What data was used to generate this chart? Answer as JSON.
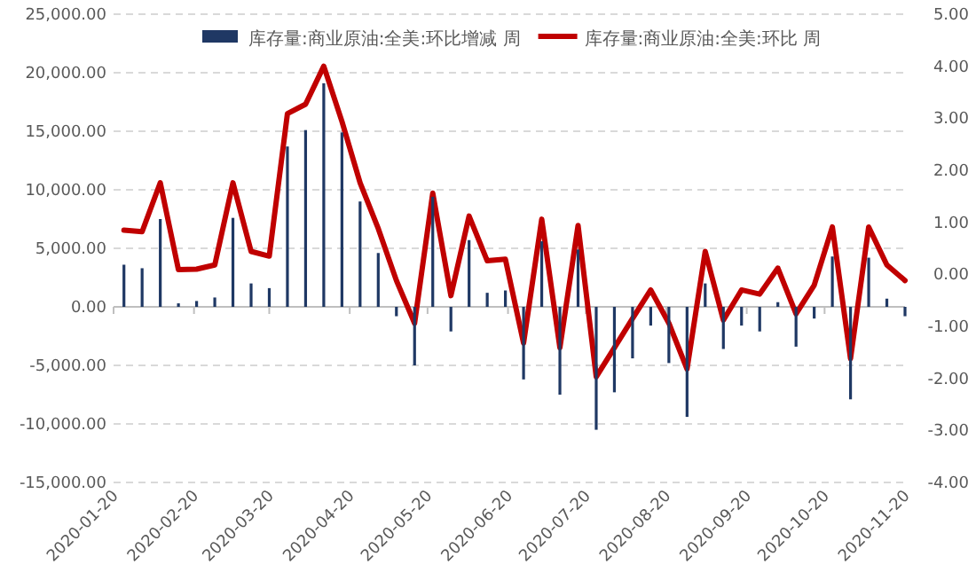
{
  "chart_data": {
    "type": "bar",
    "x": [
      "2020-01-24",
      "2020-01-31",
      "2020-02-07",
      "2020-02-14",
      "2020-02-21",
      "2020-02-28",
      "2020-03-06",
      "2020-03-13",
      "2020-03-20",
      "2020-03-27",
      "2020-04-03",
      "2020-04-10",
      "2020-04-17",
      "2020-04-24",
      "2020-05-01",
      "2020-05-08",
      "2020-05-15",
      "2020-05-22",
      "2020-05-29",
      "2020-06-05",
      "2020-06-12",
      "2020-06-19",
      "2020-06-26",
      "2020-07-03",
      "2020-07-10",
      "2020-07-17",
      "2020-07-24",
      "2020-07-31",
      "2020-08-07",
      "2020-08-14",
      "2020-08-21",
      "2020-08-28",
      "2020-09-04",
      "2020-09-11",
      "2020-09-18",
      "2020-09-25",
      "2020-10-02",
      "2020-10-09",
      "2020-10-16",
      "2020-10-23",
      "2020-10-30",
      "2020-11-06",
      "2020-11-13",
      "2020-11-20"
    ],
    "series": [
      {
        "name": "库存量:商业原油:全美:环比增减 周",
        "color": "#1f3864",
        "values": [
          3600,
          3300,
          7500,
          300,
          500,
          800,
          7600,
          2000,
          1600,
          13700,
          15100,
          19100,
          14900,
          9000,
          4600,
          -800,
          -5000,
          9400,
          -2100,
          5700,
          1200,
          1400,
          -6200,
          5600,
          -7500,
          4900,
          -10500,
          -7300,
          -4400,
          -1600,
          -4800,
          -9400,
          2000,
          -3600,
          -1600,
          -2100,
          400,
          -3400,
          -1000,
          4300,
          -7900,
          4200,
          700,
          -800
        ]
      },
      {
        "name": "库存量:商业原油:全美:环比 周",
        "type": "line",
        "axis": "y2",
        "color": "#c00000",
        "values": [
          0.85,
          0.82,
          1.76,
          0.09,
          0.1,
          0.18,
          1.76,
          0.44,
          0.35,
          3.09,
          3.27,
          4.0,
          2.94,
          1.76,
          0.88,
          -0.12,
          -0.94,
          1.56,
          -0.41,
          1.12,
          0.26,
          0.29,
          -1.32,
          1.06,
          -1.41,
          0.94,
          -1.97,
          -1.41,
          -0.85,
          -0.3,
          -0.94,
          -1.82,
          0.44,
          -0.88,
          -0.3,
          -0.38,
          0.12,
          -0.76,
          -0.21,
          0.91,
          -1.62,
          0.91,
          0.18,
          -0.12
        ]
      }
    ],
    "xlim": [
      "2020-01-20",
      "2020-11-20"
    ],
    "xticks": [
      {
        "value": "2020-01-20",
        "label": "2020-01-20"
      },
      {
        "value": "2020-02-20",
        "label": "2020-02-20"
      },
      {
        "value": "2020-03-20",
        "label": "2020-03-20"
      },
      {
        "value": "2020-04-20",
        "label": "2020-04-20"
      },
      {
        "value": "2020-05-20",
        "label": "2020-05-20"
      },
      {
        "value": "2020-06-20",
        "label": "2020-06-20"
      },
      {
        "value": "2020-07-20",
        "label": "2020-07-20"
      },
      {
        "value": "2020-08-20",
        "label": "2020-08-20"
      },
      {
        "value": "2020-09-20",
        "label": "2020-09-20"
      },
      {
        "value": "2020-10-20",
        "label": "2020-10-20"
      },
      {
        "value": "2020-11-20",
        "label": "2020-11-20"
      }
    ],
    "ylim": [
      -15000,
      25000
    ],
    "yticks": [
      {
        "value": -15000,
        "label": "-15,000.00"
      },
      {
        "value": -10000,
        "label": "-10,000.00"
      },
      {
        "value": -5000,
        "label": "-5,000.00"
      },
      {
        "value": 0,
        "label": "0.00"
      },
      {
        "value": 5000,
        "label": "5,000.00"
      },
      {
        "value": 10000,
        "label": "10,000.00"
      },
      {
        "value": 15000,
        "label": "15,000.00"
      },
      {
        "value": 20000,
        "label": "20,000.00"
      },
      {
        "value": 25000,
        "label": "25,000.00"
      }
    ],
    "y2lim": [
      -4,
      5
    ],
    "y2ticks": [
      {
        "value": -4,
        "label": "-4.00"
      },
      {
        "value": -3,
        "label": "-3.00"
      },
      {
        "value": -2,
        "label": "-2.00"
      },
      {
        "value": -1,
        "label": "-1.00"
      },
      {
        "value": 0,
        "label": "0.00"
      },
      {
        "value": 1,
        "label": "1.00"
      },
      {
        "value": 2,
        "label": "2.00"
      },
      {
        "value": 3,
        "label": "3.00"
      },
      {
        "value": 4,
        "label": "4.00"
      },
      {
        "value": 5,
        "label": "5.00"
      }
    ],
    "grid": "y",
    "legend": "top",
    "marker": "none",
    "line_style": "solid"
  }
}
